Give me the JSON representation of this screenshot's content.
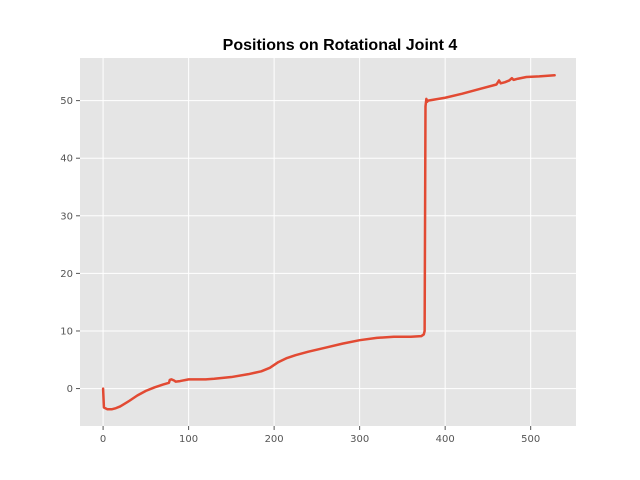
{
  "chart_data": {
    "type": "line",
    "title": "Positions on Rotational Joint 4",
    "xlabel": "",
    "ylabel": "",
    "xlim": [
      -27,
      553
    ],
    "ylim": [
      -6.5,
      57.4
    ],
    "x_ticks": [
      0,
      100,
      200,
      300,
      400,
      500
    ],
    "y_ticks": [
      0,
      10,
      20,
      30,
      40,
      50
    ],
    "grid": true,
    "style": "ggplot",
    "series": [
      {
        "color": "#E24A33",
        "points": [
          [
            0,
            0.0
          ],
          [
            1,
            -3.3
          ],
          [
            5,
            -3.6
          ],
          [
            10,
            -3.6
          ],
          [
            15,
            -3.4
          ],
          [
            20,
            -3.1
          ],
          [
            30,
            -2.2
          ],
          [
            40,
            -1.2
          ],
          [
            50,
            -0.4
          ],
          [
            60,
            0.2
          ],
          [
            70,
            0.7
          ],
          [
            77,
            1.0
          ],
          [
            78,
            1.5
          ],
          [
            80,
            1.6
          ],
          [
            83,
            1.4
          ],
          [
            85,
            1.2
          ],
          [
            90,
            1.3
          ],
          [
            100,
            1.6
          ],
          [
            110,
            1.6
          ],
          [
            120,
            1.6
          ],
          [
            130,
            1.7
          ],
          [
            150,
            2.0
          ],
          [
            170,
            2.5
          ],
          [
            185,
            3.0
          ],
          [
            195,
            3.6
          ],
          [
            205,
            4.6
          ],
          [
            215,
            5.3
          ],
          [
            225,
            5.8
          ],
          [
            240,
            6.4
          ],
          [
            260,
            7.1
          ],
          [
            280,
            7.8
          ],
          [
            300,
            8.4
          ],
          [
            320,
            8.8
          ],
          [
            340,
            9.0
          ],
          [
            360,
            9.0
          ],
          [
            372,
            9.1
          ],
          [
            375,
            9.4
          ],
          [
            376,
            10.0
          ],
          [
            377,
            49.0
          ],
          [
            378,
            50.3
          ],
          [
            379,
            49.8
          ],
          [
            380,
            50.0
          ],
          [
            400,
            50.5
          ],
          [
            420,
            51.2
          ],
          [
            440,
            52.0
          ],
          [
            460,
            52.8
          ],
          [
            463,
            53.5
          ],
          [
            465,
            53.0
          ],
          [
            470,
            53.2
          ],
          [
            475,
            53.5
          ],
          [
            478,
            53.9
          ],
          [
            480,
            53.6
          ],
          [
            485,
            53.8
          ],
          [
            495,
            54.1
          ],
          [
            510,
            54.2
          ],
          [
            528,
            54.4
          ]
        ]
      }
    ]
  }
}
